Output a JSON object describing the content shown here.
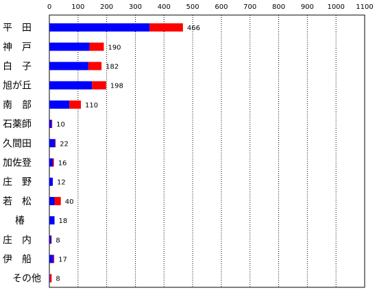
{
  "chart_data": {
    "type": "bar",
    "orientation": "horizontal",
    "stacked": true,
    "xlim": [
      0,
      1100
    ],
    "x_ticks": [
      0,
      100,
      200,
      300,
      400,
      500,
      600,
      700,
      800,
      900,
      1000,
      1100
    ],
    "grid": "vertical dotted",
    "categories": [
      "平　田",
      "神　戸",
      "白　子",
      "旭が丘",
      "南　部",
      "石薬師",
      "久間田",
      "加佐登",
      "庄　野",
      "若　松",
      "椿",
      "庄　内",
      "伊　船",
      "その他"
    ],
    "totals": [
      466,
      190,
      182,
      198,
      110,
      10,
      22,
      16,
      12,
      40,
      18,
      8,
      17,
      8
    ],
    "series": [
      {
        "color": "#0000ff",
        "values": [
          350,
          140,
          136,
          149,
          70,
          8,
          20,
          12,
          12,
          18,
          18,
          6,
          14,
          2
        ]
      },
      {
        "color": "#ff0000",
        "values": [
          116,
          50,
          46,
          49,
          40,
          2,
          2,
          4,
          0,
          22,
          0,
          2,
          3,
          6
        ]
      }
    ]
  }
}
